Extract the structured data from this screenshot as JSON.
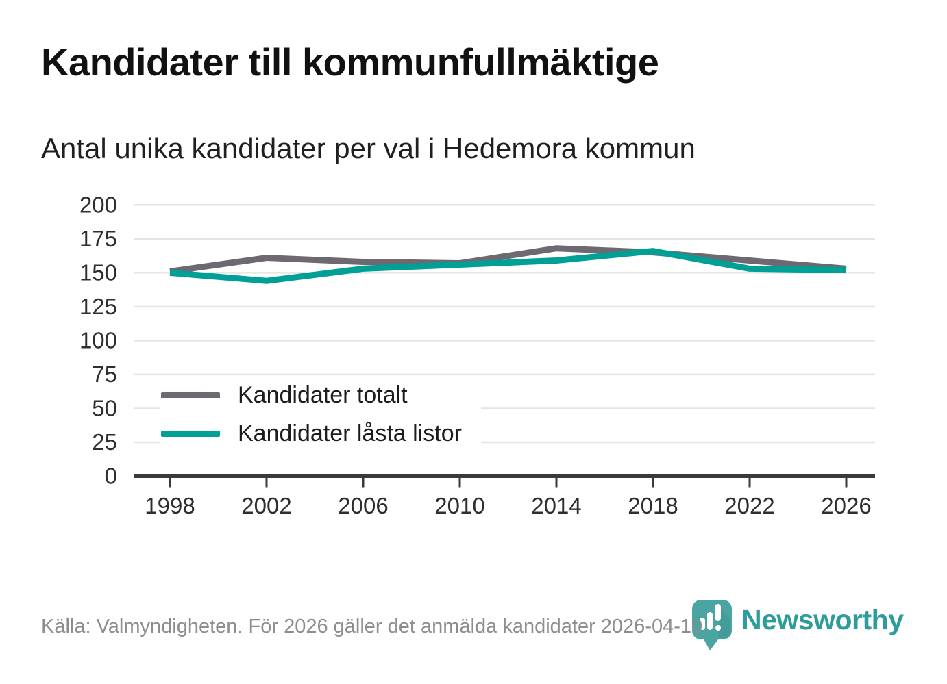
{
  "header": {
    "title": "Kandidater till kommunfullmäktige",
    "subtitle": "Antal unika kandidater per val i Hedemora kommun"
  },
  "chart_data": {
    "type": "line",
    "x": [
      1998,
      2002,
      2006,
      2010,
      2014,
      2018,
      2022,
      2026
    ],
    "series": [
      {
        "name": "Kandidater totalt",
        "color": "#6e6970",
        "values": [
          151,
          161,
          158,
          157,
          168,
          165,
          159,
          153
        ]
      },
      {
        "name": "Kandidater låsta listor",
        "color": "#00a096",
        "values": [
          150,
          144,
          153,
          156,
          159,
          166,
          153,
          152
        ]
      }
    ],
    "title": "Kandidater till kommunfullmäktige",
    "subtitle": "Antal unika kandidater per val i Hedemora kommun",
    "xlabel": "",
    "ylabel": "",
    "ylim": [
      0,
      200
    ],
    "yticks": [
      0,
      25,
      50,
      75,
      100,
      125,
      150,
      175,
      200
    ],
    "grid": "horizontal",
    "legend_position": "inside-bottom-left"
  },
  "footer": {
    "source": "Källa: Valmyndigheten. För 2026 gäller det anmälda kandidater 2026-04-10.",
    "brand": "Newsworthy"
  },
  "colors": {
    "line_gray": "#6e6970",
    "line_teal": "#00a096",
    "brand_teal": "#2d9c9a",
    "badge_teal": "#4aa5a2",
    "gridline": "#e4e4e4",
    "axis": "#3a3a3a",
    "tick_text": "#2e2e2e",
    "source_text": "#8d8d8d"
  }
}
